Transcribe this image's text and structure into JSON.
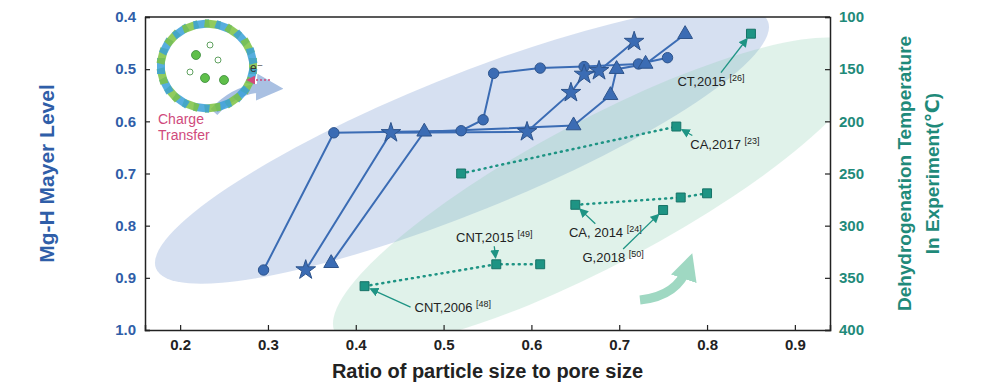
{
  "chart_data": {
    "type": "line",
    "xlabel": "Ratio of particle size to pore size",
    "ylabel": "Mg-H Mayer Level",
    "y2label": [
      "Dehydrogenation Temperature",
      "In Experiment(℃)"
    ],
    "xlim": [
      0.16,
      0.94
    ],
    "xticks": [
      0.2,
      0.3,
      0.4,
      0.5,
      0.6,
      0.7,
      0.8,
      0.9
    ],
    "ylim": [
      0.4,
      1.0
    ],
    "yticks": [
      0.4,
      0.5,
      0.6,
      0.7,
      0.8,
      0.9,
      {
        "value": 1,
        "label": "1.0"
      }
    ],
    "y2lim": [
      100,
      400
    ],
    "y2ticks": [
      100,
      150,
      200,
      250,
      300,
      350,
      400
    ],
    "inset": {
      "electron": "e⁻",
      "caption": [
        "Charge",
        "Transfer"
      ]
    },
    "series": [
      {
        "axis": "y",
        "color": "#3b6cb4",
        "marker": "circle",
        "line_style": "solid",
        "x": [
          0.295,
          0.375,
          0.52,
          0.545,
          0.557,
          0.61,
          0.66,
          0.722,
          0.755
        ],
        "values": [
          0.885,
          0.622,
          0.618,
          0.597,
          0.508,
          0.498,
          0.495,
          0.49,
          0.478
        ]
      },
      {
        "axis": "y",
        "color": "#3b6cb4",
        "marker": "star",
        "line_style": "solid",
        "x": [
          0.343,
          0.44,
          0.595,
          0.645,
          0.66,
          0.677,
          0.717
        ],
        "values": [
          0.885,
          0.622,
          0.62,
          0.545,
          0.51,
          0.503,
          0.447
        ]
      },
      {
        "axis": "y",
        "color": "#3b6cb4",
        "marker": "triangle",
        "line_style": "solid",
        "x": [
          0.372,
          0.478,
          0.648,
          0.69,
          0.697,
          0.73,
          0.775
        ],
        "values": [
          0.872,
          0.62,
          0.608,
          0.55,
          0.5,
          0.49,
          0.433
        ]
      },
      {
        "axis": "y2",
        "color": "#1e9484",
        "marker": "square",
        "line_style": "dotted",
        "x": [
          0.41,
          0.56,
          0.61
        ],
        "values": [
          358,
          337,
          337
        ],
        "point_labels": [
          "CNT,2006 [48]",
          "CNT,2015 [49]",
          null
        ]
      },
      {
        "axis": "y2",
        "color": "#1e9484",
        "marker": "square",
        "line_style": "dotted",
        "x": [
          0.52,
          0.765
        ],
        "values": [
          250,
          205
        ],
        "point_labels": [
          null,
          "CA,2017 [23]"
        ]
      },
      {
        "axis": "y2",
        "color": "#1e9484",
        "marker": "square",
        "line_style": "dotted",
        "x": [
          0.65,
          0.77,
          0.8
        ],
        "values": [
          280,
          273,
          269
        ],
        "point_labels": [
          "CA, 2014 [24]",
          null,
          null
        ]
      },
      {
        "axis": "y2",
        "color": "#1e9484",
        "marker": "square",
        "line_style": "none",
        "x": [
          0.75
        ],
        "values": [
          285
        ],
        "point_labels": [
          "G,2018 [50]"
        ]
      },
      {
        "axis": "y2",
        "color": "#1e9484",
        "marker": "square",
        "line_style": "none",
        "x": [
          0.85
        ],
        "values": [
          116
        ],
        "point_labels": [
          "CT,2015 [26]"
        ]
      }
    ]
  }
}
